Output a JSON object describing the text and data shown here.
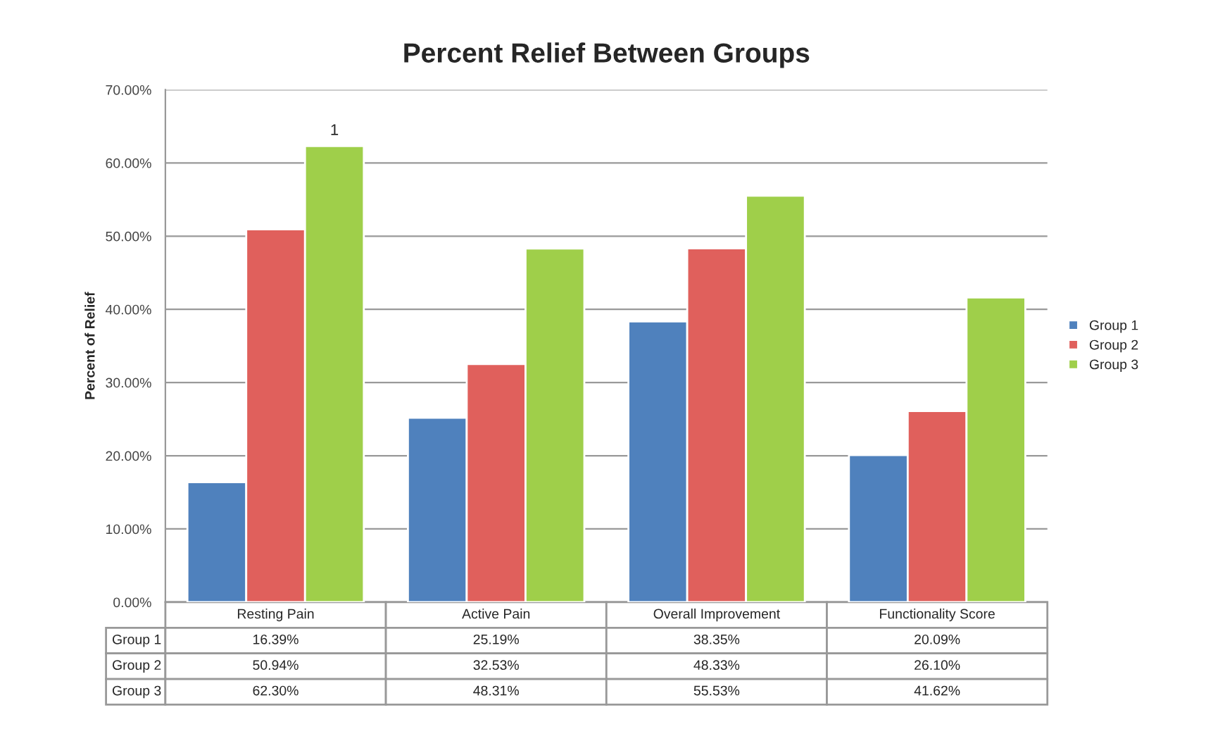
{
  "chart_data": {
    "type": "bar",
    "title": "Percent Relief Between Groups",
    "ylabel": "Percent of Relief",
    "categories": [
      "Resting Pain",
      "Active Pain",
      "Overall Improvement",
      "Functionality Score"
    ],
    "series": [
      {
        "name": "Group 1",
        "color": "#4f81bd",
        "values": [
          16.39,
          25.19,
          38.35,
          20.09
        ],
        "value_labels": [
          "16.39%",
          "25.19%",
          "38.35%",
          "20.09%"
        ]
      },
      {
        "name": "Group 2",
        "color": "#e0605c",
        "values": [
          50.94,
          32.53,
          48.33,
          26.1
        ],
        "value_labels": [
          "50.94%",
          "32.53%",
          "48.33%",
          "26.10%"
        ]
      },
      {
        "name": "Group 3",
        "color": "#9fcf4a",
        "values": [
          62.3,
          48.31,
          55.53,
          41.62
        ],
        "value_labels": [
          "62.30%",
          "48.31%",
          "55.53%",
          "41.62%"
        ]
      }
    ],
    "ylim": [
      0,
      70
    ],
    "yticks": [
      {
        "value": 0,
        "label": "0.00%"
      },
      {
        "value": 10,
        "label": "10.00%"
      },
      {
        "value": 20,
        "label": "20.00%"
      },
      {
        "value": 30,
        "label": "30.00%"
      },
      {
        "value": 40,
        "label": "40.00%"
      },
      {
        "value": 50,
        "label": "50.00%"
      },
      {
        "value": 60,
        "label": "60.00%"
      },
      {
        "value": 70,
        "label": "70.00%"
      }
    ],
    "grid": "y",
    "legend": "right",
    "annotations": [
      "1"
    ]
  }
}
